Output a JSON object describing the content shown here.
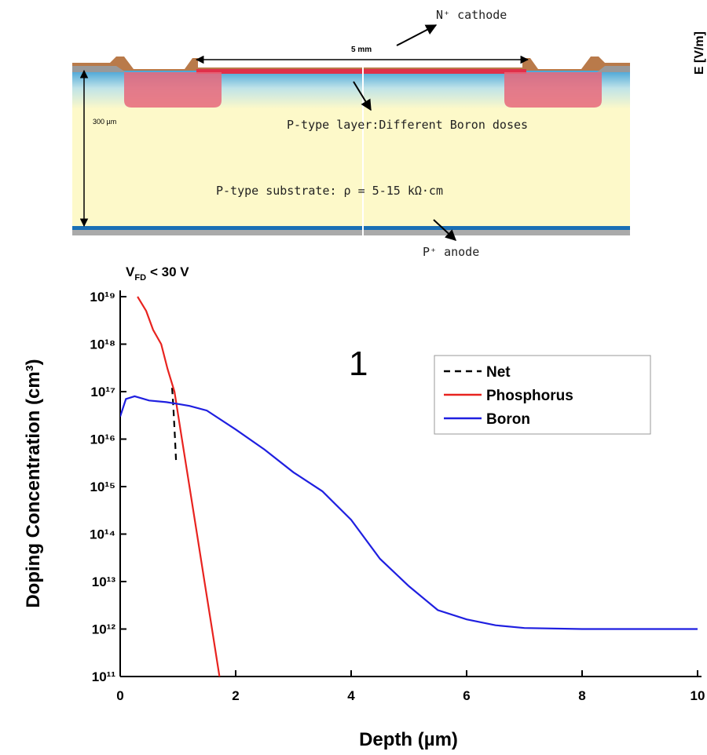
{
  "diagram": {
    "cathode": "N⁺ cathode",
    "width": "5 mm",
    "layer": "P-type layer:Different Boron doses",
    "substrate": "P-type substrate: ρ = 5-15 kΩ·cm",
    "thickness": "300 µm",
    "anode": "P⁺ anode",
    "side_label": "E [V/m]"
  },
  "chart_data": {
    "type": "line",
    "log_y": true,
    "vfd": {
      "text": "V",
      "sub": "FD",
      "rest": "< 30 V"
    },
    "annotation": "1",
    "x_label": "Depth (µm)",
    "y_label": "Doping Concentration (cm³)",
    "xlim": [
      0,
      10
    ],
    "xticks": [
      0,
      2,
      4,
      6,
      8,
      10
    ],
    "ylim": [
      100000000000.0,
      1e+19
    ],
    "yticks": [
      {
        "value": 100000000000.0,
        "label": "10¹¹"
      },
      {
        "value": 1000000000000.0,
        "label": "10¹²"
      },
      {
        "value": 10000000000000.0,
        "label": "10¹³"
      },
      {
        "value": 100000000000000.0,
        "label": "10¹⁴"
      },
      {
        "value": 1000000000000000.0,
        "label": "10¹⁵"
      },
      {
        "value": 1e+16,
        "label": "10¹⁶"
      },
      {
        "value": 1e+17,
        "label": "10¹⁷"
      },
      {
        "value": 1e+18,
        "label": "10¹⁸"
      },
      {
        "value": 1e+19,
        "label": "10¹⁹"
      }
    ],
    "legend": "upper right",
    "series": [
      {
        "name": "Net",
        "color": "#000000",
        "dashed": true,
        "x": [
          0.9,
          0.92,
          0.95,
          0.97
        ],
        "values": [
          1.2e+17,
          5e+16,
          1e+16,
          3000000000000000.0
        ]
      },
      {
        "name": "Phosphorus",
        "color": "#e8231f",
        "x": [
          0.3,
          0.45,
          0.57,
          0.71,
          0.82,
          0.94,
          1.07,
          1.2,
          1.33,
          1.46,
          1.59,
          1.72
        ],
        "values": [
          1e+19,
          5e+18,
          2e+18,
          1e+18,
          3e+17,
          1e+17,
          1e+16,
          1000000000000000.0,
          100000000000000.0,
          10000000000000.0,
          1000000000000.0,
          100000000000.0
        ]
      },
      {
        "name": "Boron",
        "color": "#1f1fe0",
        "x": [
          0,
          0.1,
          0.25,
          0.5,
          0.8,
          1.0,
          1.2,
          1.5,
          2,
          2.5,
          3,
          3.5,
          4,
          4.5,
          5,
          5.5,
          6,
          6.5,
          7,
          8,
          9,
          10
        ],
        "values": [
          3e+16,
          7e+16,
          8e+16,
          6.5e+16,
          6e+16,
          5.5e+16,
          5e+16,
          4e+16,
          1.6e+16,
          6000000000000000.0,
          2000000000000000.0,
          800000000000000.0,
          200000000000000.0,
          30000000000000.0,
          8000000000000.0,
          2500000000000.0,
          1600000000000.0,
          1200000000000.0,
          1050000000000.0,
          1000000000000.0,
          1000000000000.0,
          1000000000000.0
        ]
      }
    ]
  }
}
